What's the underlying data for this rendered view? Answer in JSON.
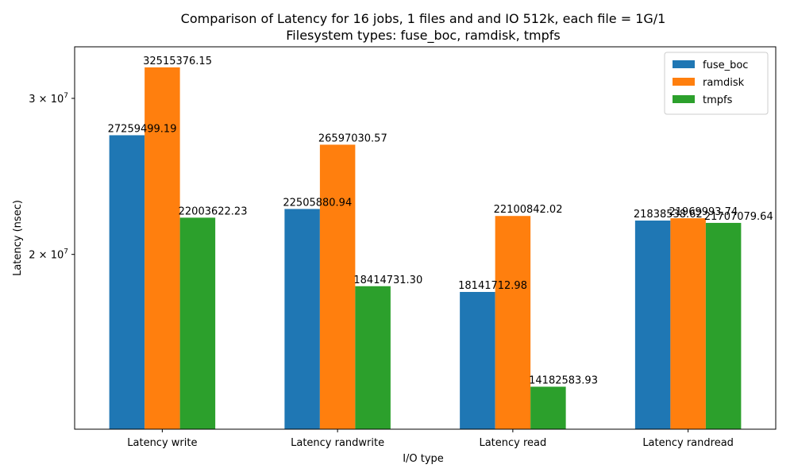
{
  "chart_data": {
    "type": "bar",
    "title_lines": [
      "Comparison of Latency for 16 jobs, 1 files and  and IO 512k, each file = 1G/1",
      "Filesystem types: fuse_boc, ramdisk, tmpfs"
    ],
    "xlabel": "I/O type",
    "ylabel": "Latency (nsec)",
    "yscale": "log",
    "ylim": [
      12700000,
      34300000
    ],
    "yticks": [
      {
        "value": 20000000,
        "mantissa": "2",
        "exponent": "7"
      },
      {
        "value": 30000000,
        "mantissa": "3",
        "exponent": "7"
      }
    ],
    "categories": [
      "Latency write",
      "Latency randwrite",
      "Latency read",
      "Latency randread"
    ],
    "series": [
      {
        "name": "fuse_boc",
        "color": "#1f77b4",
        "values": [
          27259499.19,
          22505880.94,
          18141712.98,
          21838538.62
        ],
        "labels": [
          "27259499.19",
          "22505880.94",
          "18141712.98",
          "21838538.62"
        ]
      },
      {
        "name": "ramdisk",
        "color": "#ff7f0e",
        "values": [
          32515376.15,
          26597030.57,
          22100842.02,
          21969993.74
        ],
        "labels": [
          "32515376.15",
          "26597030.57",
          "22100842.02",
          "21969993.74"
        ]
      },
      {
        "name": "tmpfs",
        "color": "#2ca02c",
        "values": [
          22003622.23,
          18414731.3,
          14182583.93,
          21707079.64
        ],
        "labels": [
          "22003622.23",
          "18414731.30",
          "14182583.93",
          "21707079.64"
        ]
      }
    ],
    "legend_position": "top-right",
    "grid": false
  }
}
